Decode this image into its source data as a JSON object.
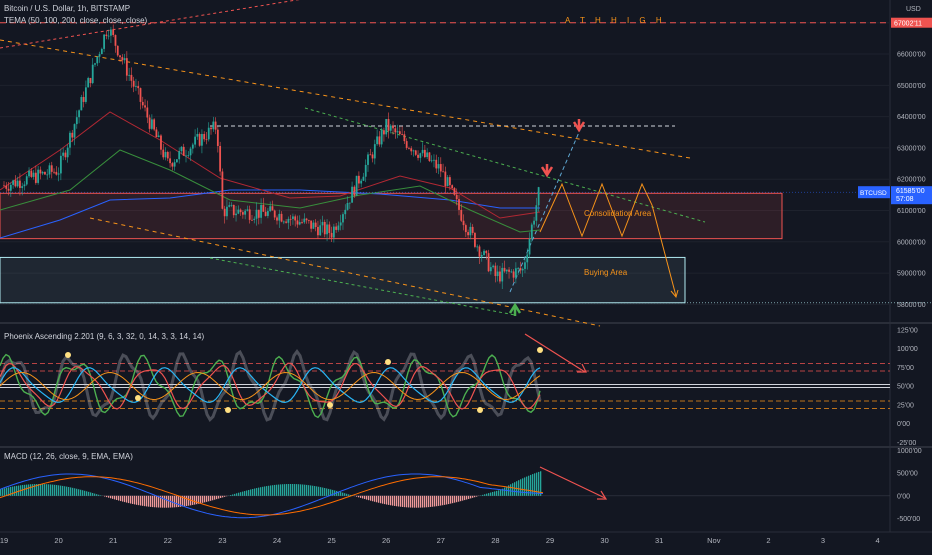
{
  "header": {
    "symbol_line": "Bitcoin / U.S. Dollar, 1h, BITSTAMP",
    "indicator_line": "TEMA (50, 100, 200, close, close, close)",
    "phoenix_line": "Phoenix Ascending 2.201 (9, 6, 3, 32, 0, 14, 3, 3, 14, 14)",
    "macd_line": "MACD (12, 26, close, 9, EMA, EMA)",
    "currency": "USD"
  },
  "colors": {
    "background": "#131722",
    "up": "#26a69a",
    "down": "#ef5350",
    "orange": "#f7931a",
    "red_line": "#ef5350",
    "blue_line": "#2962ff",
    "green_dots": "#4caf50",
    "price_tag": "#2962ff"
  },
  "annotations": {
    "ath_label": "A T H   H I G H",
    "consolidation": "Consolidation Area",
    "buying": "Buying Area"
  },
  "price_tag": {
    "price": "61585'00",
    "time": "57:08",
    "symbol": "BTCUSD"
  },
  "ath_tag": "67002'11",
  "chart_data": [
    {
      "type": "candlestick",
      "title": "Bitcoin / U.S. Dollar, 1h, BITSTAMP",
      "y_unit": "USD",
      "ylim": [
        57500,
        67600
      ],
      "y_ticks": [
        "58000'00",
        "59000'00",
        "60000'00",
        "61000'00",
        "62000'00",
        "63000'00",
        "64000'00",
        "65000'00",
        "66000'00",
        "67000'00"
      ],
      "y_tick_values": [
        58000,
        59000,
        60000,
        61000,
        62000,
        63000,
        64000,
        65000,
        66000,
        67000
      ],
      "x_ticks": [
        "19",
        "20",
        "21",
        "22",
        "23",
        "24",
        "25",
        "26",
        "27",
        "28",
        "29",
        "30",
        "31",
        "Nov",
        "2",
        "3",
        "4"
      ],
      "close_path_by_day": [
        {
          "day": "19",
          "close": 61800
        },
        {
          "day": "20",
          "close": 62300
        },
        {
          "day": "20.9",
          "close": 66900
        },
        {
          "day": "21",
          "close": 66500
        },
        {
          "day": "22",
          "close": 62500
        },
        {
          "day": "22.9",
          "close": 63700
        },
        {
          "day": "23",
          "close": 61000
        },
        {
          "day": "24",
          "close": 60900
        },
        {
          "day": "25",
          "close": 60300
        },
        {
          "day": "25.5",
          "close": 62000
        },
        {
          "day": "26",
          "close": 63700
        },
        {
          "day": "27",
          "close": 62300
        },
        {
          "day": "27.5",
          "close": 60400
        },
        {
          "day": "28",
          "close": 58900
        },
        {
          "day": "28.5",
          "close": 59100
        },
        {
          "day": "28.8",
          "close": 61600
        }
      ],
      "levels": {
        "ath": 67002,
        "resistance_dashed": 63700,
        "consolidation_top": 61550,
        "consolidation_bottom": 60100,
        "buying_top": 59500,
        "buying_bottom": 58050
      }
    },
    {
      "type": "oscillator",
      "title": "Phoenix Ascending 2.201",
      "ylim": [
        -30,
        130
      ],
      "y_ticks": [
        "125'00",
        "100'00",
        "75'00",
        "50'00",
        "25'00",
        "0'00",
        "-25'00"
      ],
      "y_tick_values": [
        125,
        100,
        75,
        50,
        25,
        0,
        -25
      ]
    },
    {
      "type": "macd",
      "title": "MACD (12, 26, close, 9, EMA, EMA)",
      "y_ticks": [
        "1000'00",
        "500'00",
        "0'00",
        "-500'00"
      ],
      "y_tick_values": [
        1000,
        500,
        0,
        -500
      ],
      "ylim": [
        -750,
        1050
      ]
    }
  ]
}
